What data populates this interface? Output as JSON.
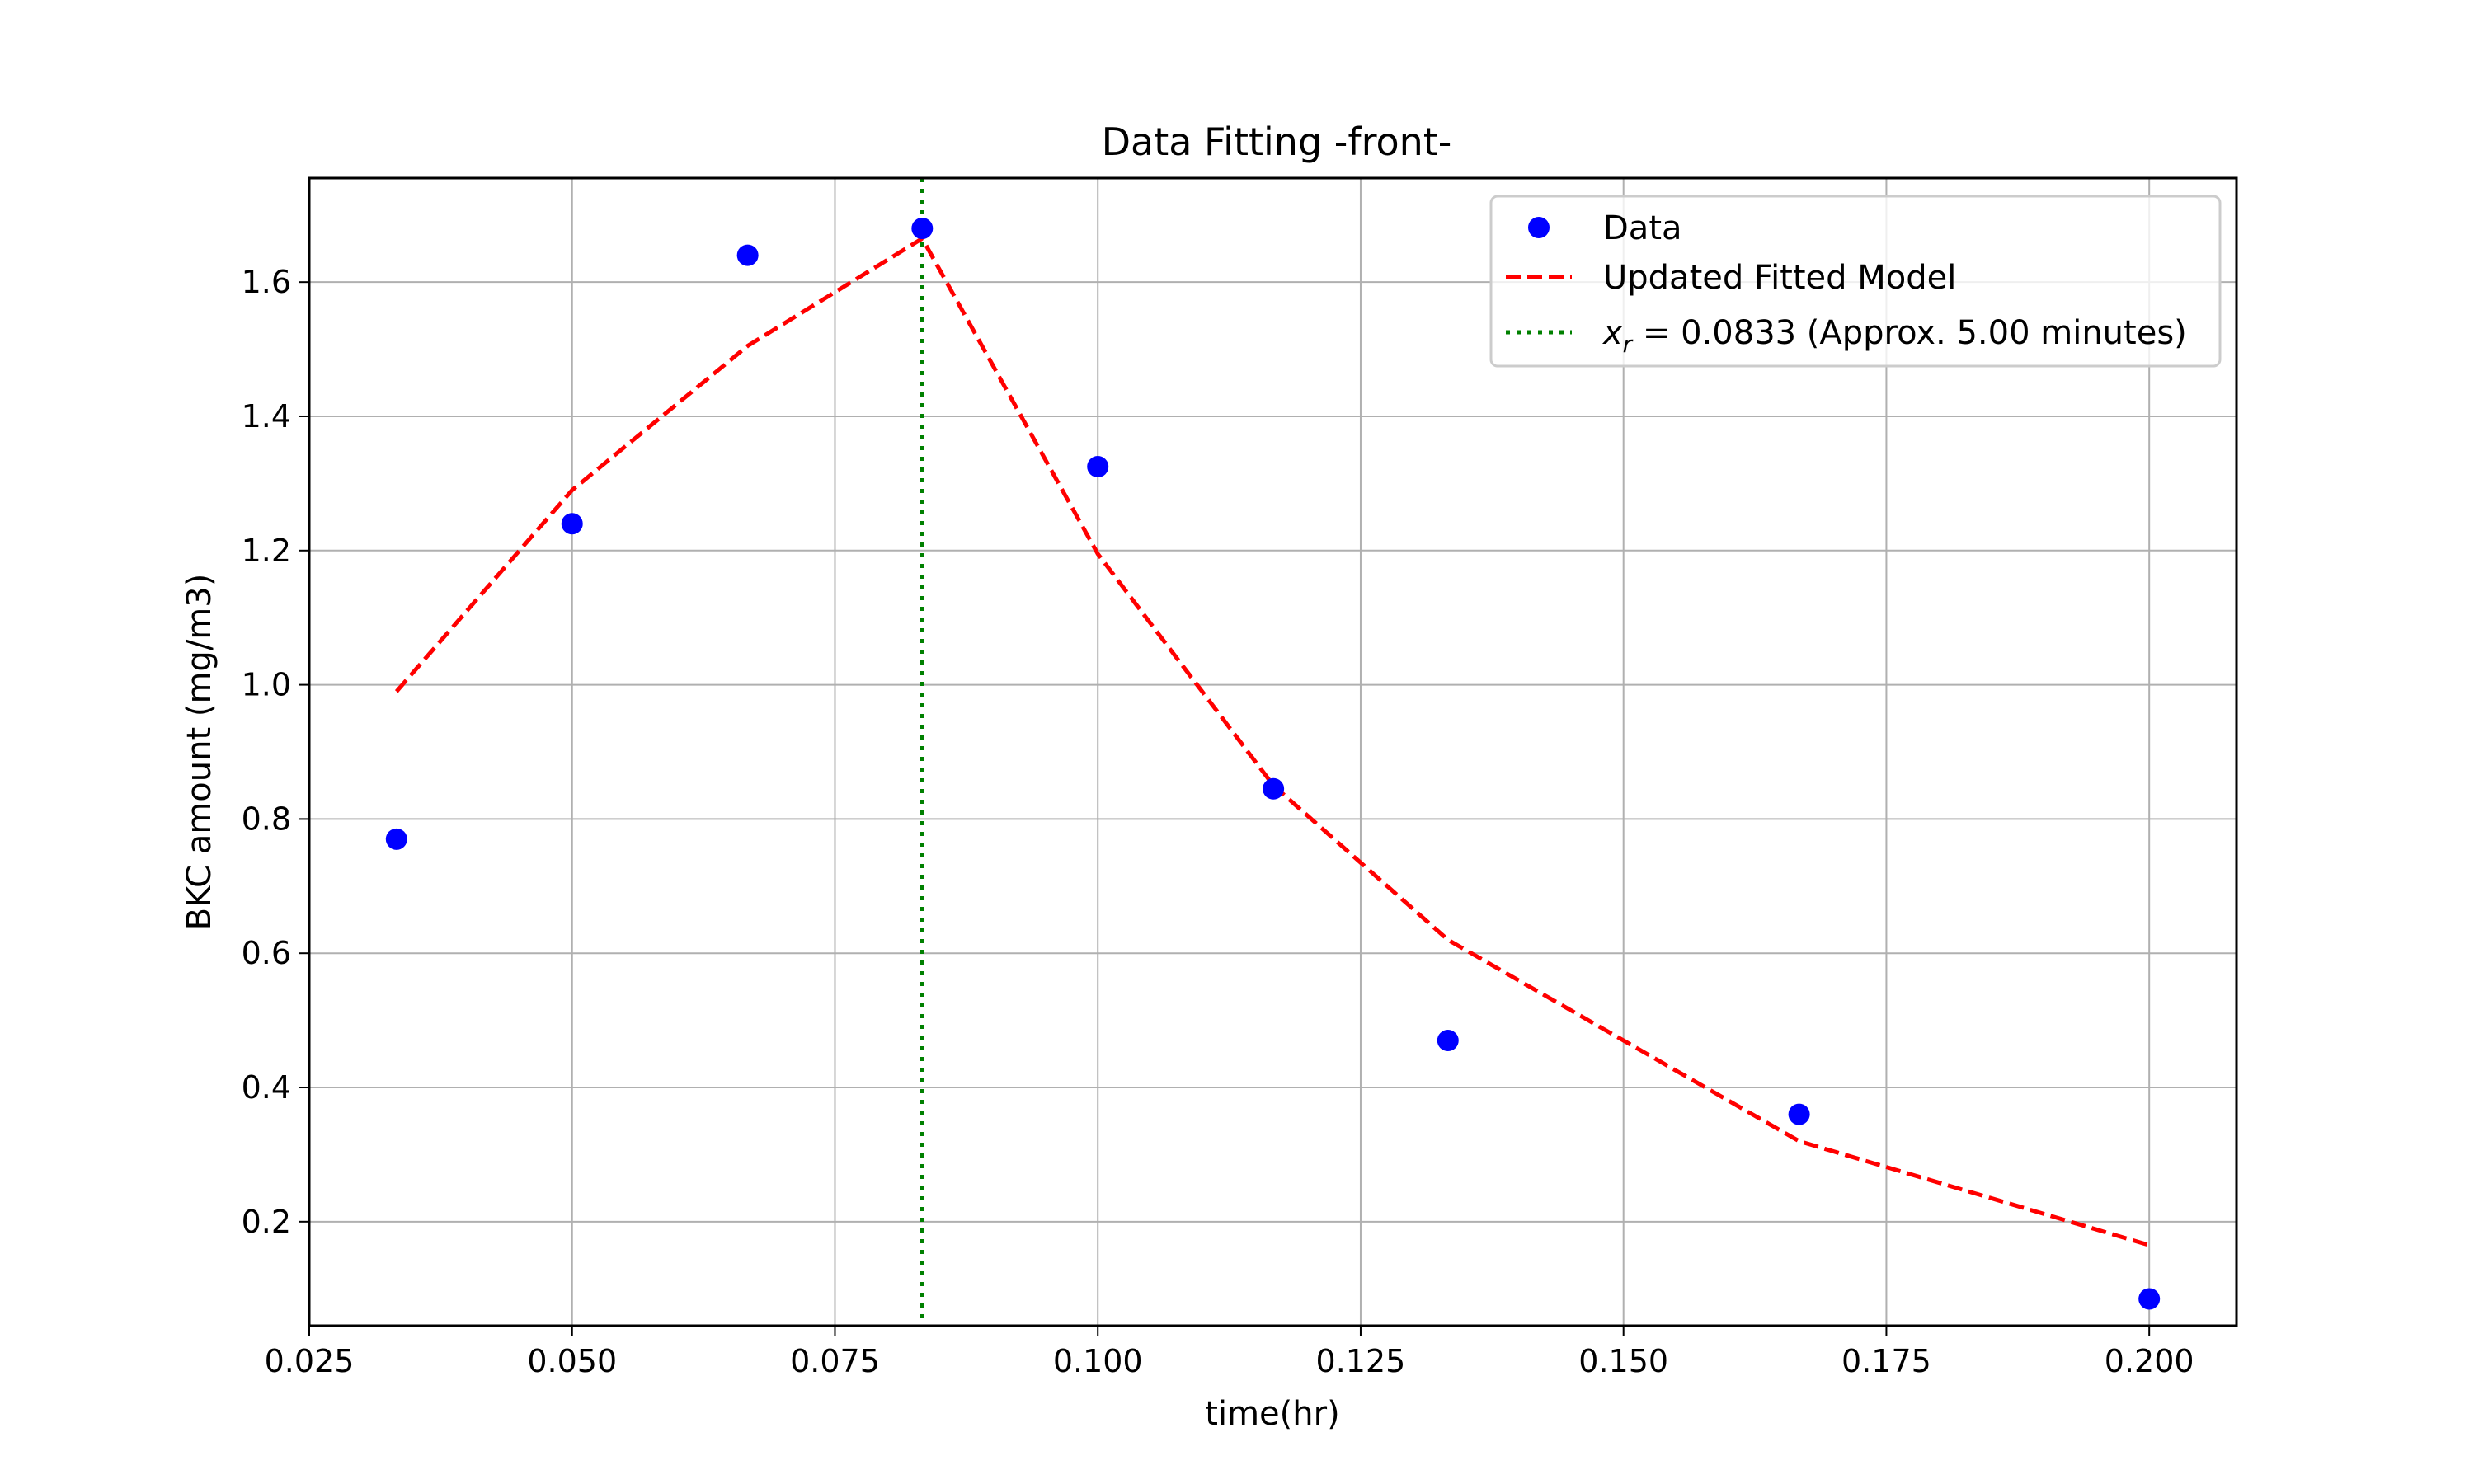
{
  "chart_data": {
    "type": "scatter",
    "title": "Data Fitting -front-",
    "xlabel": "time(hr)",
    "ylabel": "BKC amount (mg/m3)",
    "xlim": [
      0.025,
      0.2083
    ],
    "ylim": [
      0.045,
      1.755
    ],
    "grid": true,
    "legend_position": "top-right",
    "x_ticks": [
      "0.025",
      "0.050",
      "0.075",
      "0.100",
      "0.125",
      "0.150",
      "0.175",
      "0.200"
    ],
    "y_ticks": [
      "0.2",
      "0.4",
      "0.6",
      "0.8",
      "1.0",
      "1.2",
      "1.4",
      "1.6"
    ],
    "series": [
      {
        "name": "Data",
        "kind": "scatter",
        "color": "#0000ff",
        "x": [
          0.0333,
          0.05,
          0.0667,
          0.0833,
          0.1,
          0.1167,
          0.1333,
          0.1667,
          0.2
        ],
        "y": [
          0.77,
          1.24,
          1.64,
          1.68,
          1.325,
          0.845,
          0.47,
          0.36,
          0.085
        ]
      },
      {
        "name": "Updated Fitted Model",
        "kind": "line",
        "style": "dashed",
        "color": "#ff0000",
        "x": [
          0.0333,
          0.05,
          0.0667,
          0.0833,
          0.1,
          0.1167,
          0.1333,
          0.1667,
          0.2
        ],
        "y": [
          0.99,
          1.29,
          1.505,
          1.665,
          1.195,
          0.85,
          0.62,
          0.32,
          0.165
        ]
      }
    ],
    "vline": {
      "x": 0.0833,
      "color": "#008000",
      "style": "dotted",
      "label_var": "x",
      "label_sub": "r",
      "label_rest": " = 0.0833 (Approx. 5.00 minutes)"
    }
  }
}
